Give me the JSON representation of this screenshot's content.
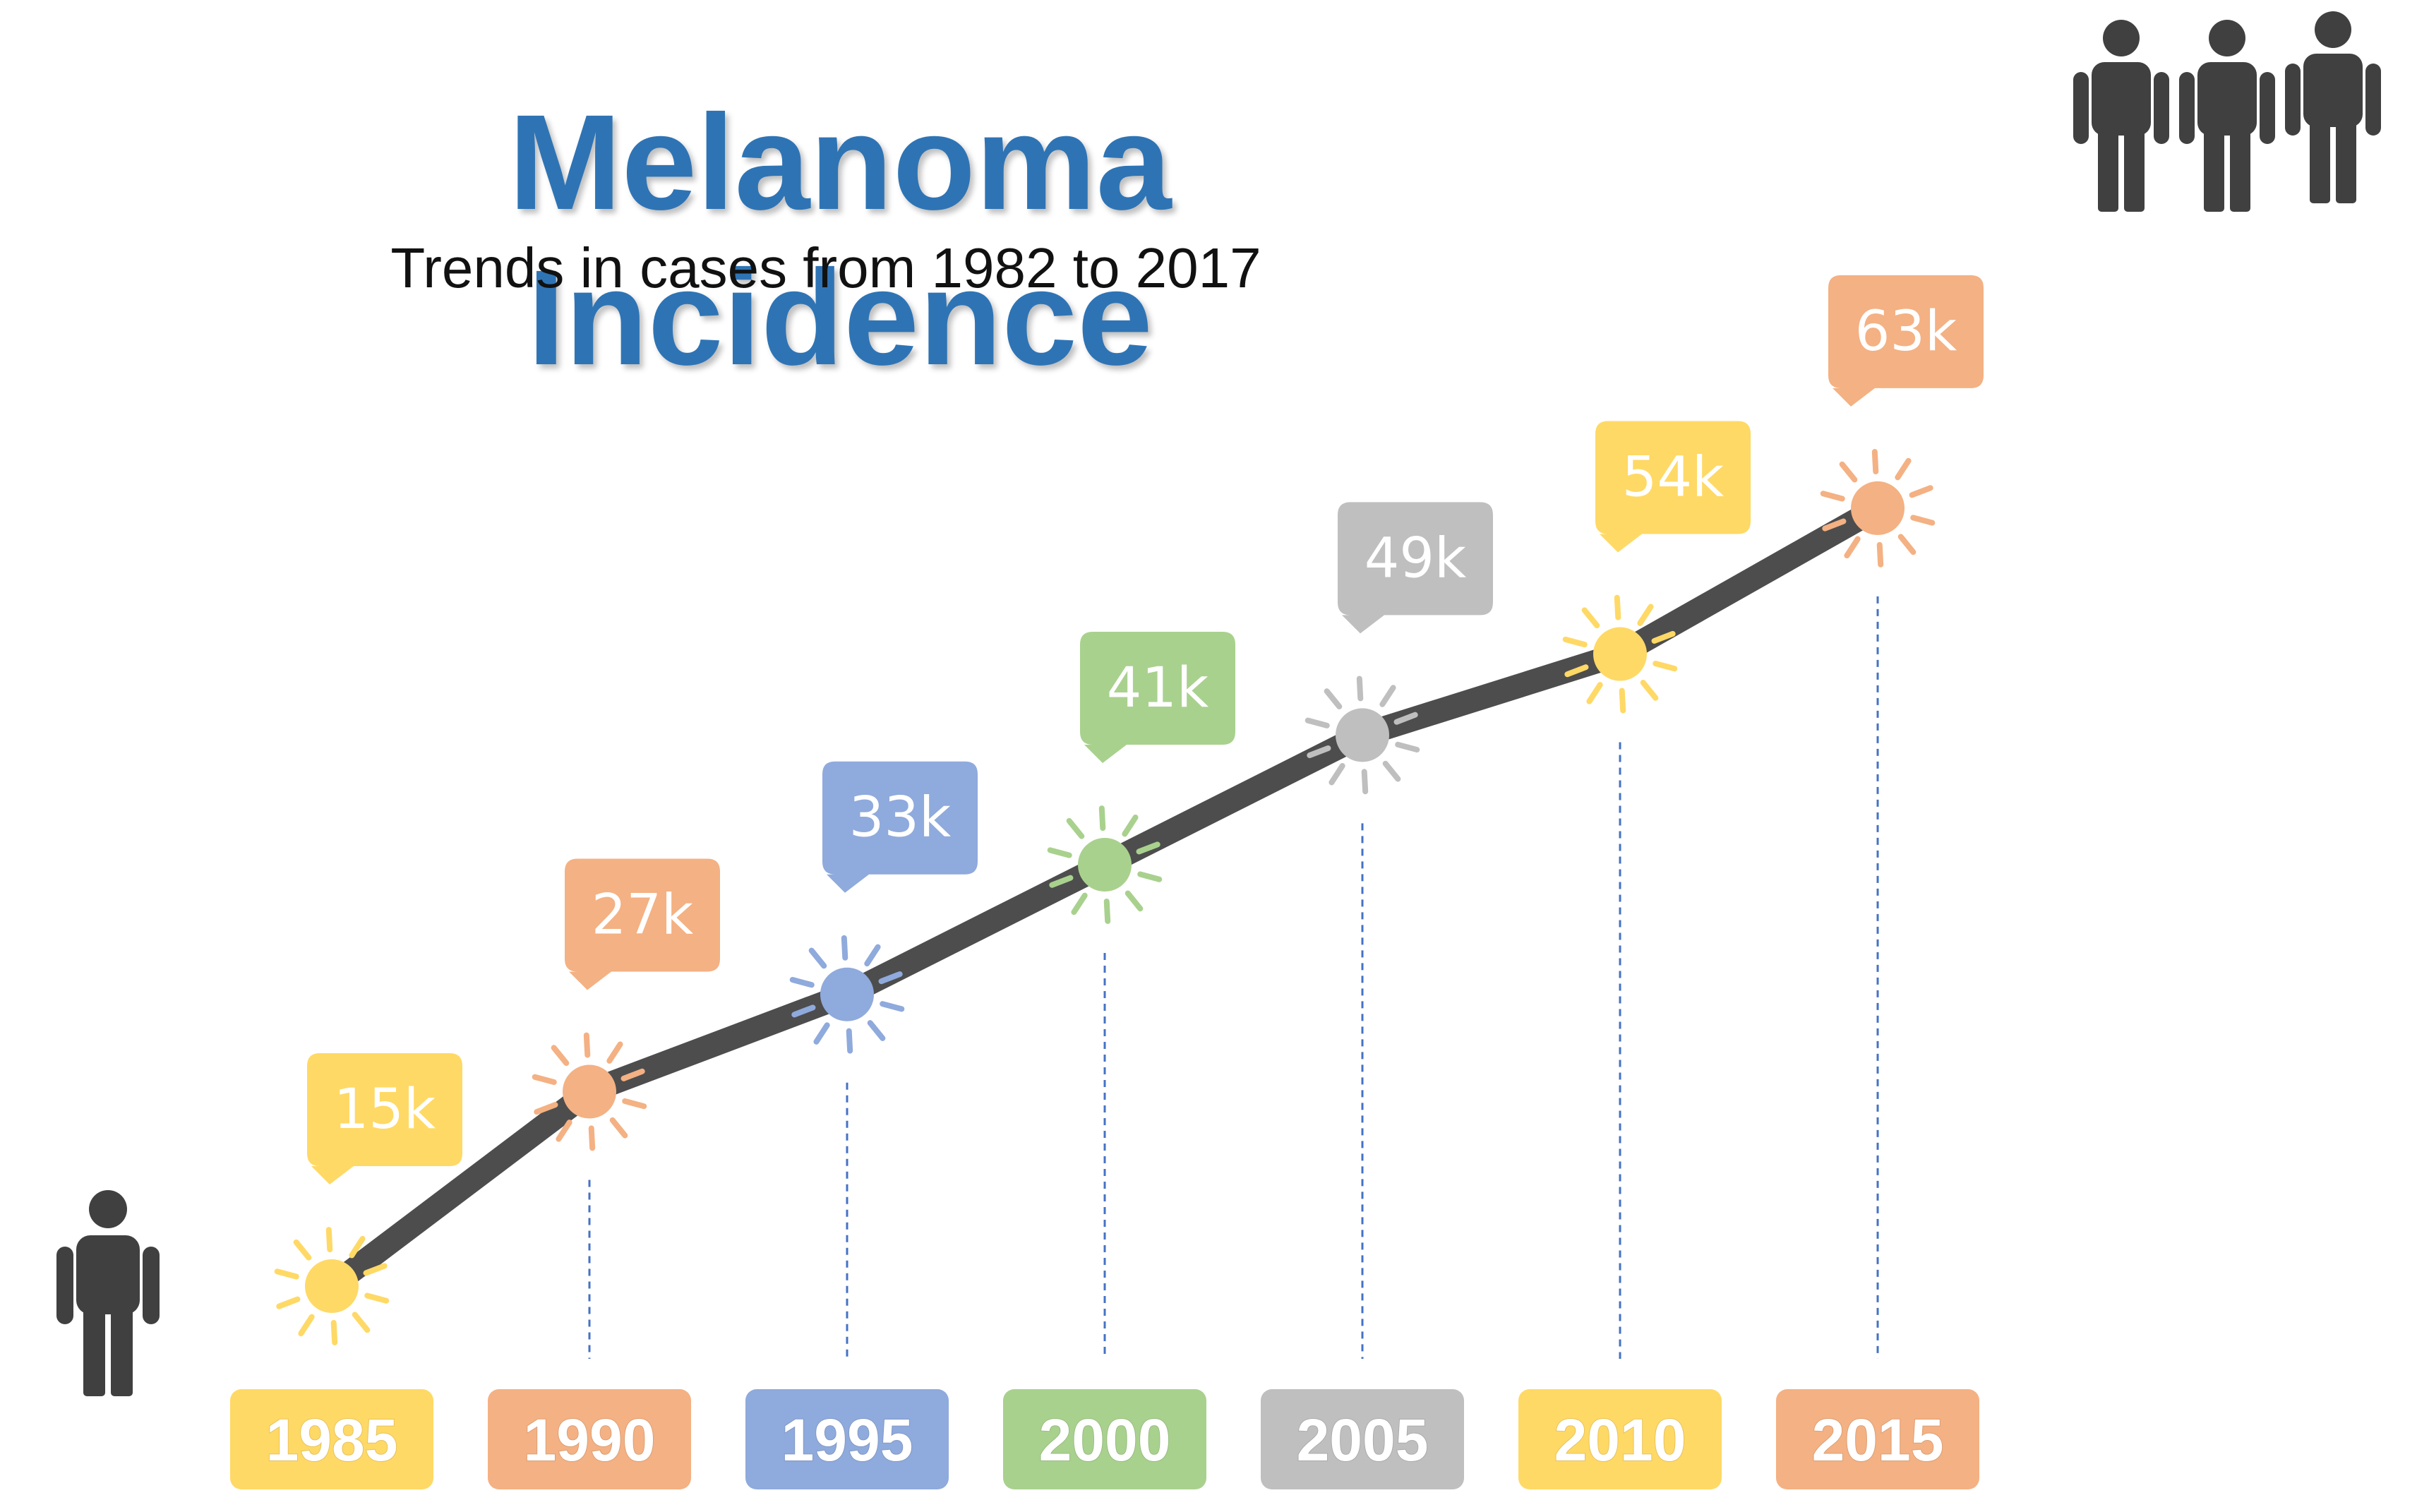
{
  "title": "Melanoma Incidence",
  "subtitle": "Trends in cases from 1982 to 2017",
  "icons": {
    "single_person": "person-icon",
    "group_of_people": "people-group-icon",
    "data_marker": "sun-icon"
  },
  "chart_data": {
    "type": "line",
    "title": "Melanoma Incidence",
    "subtitle": "Trends in cases from 1982 to 2017",
    "xlabel": "",
    "ylabel": "",
    "x": [
      "1985",
      "1990",
      "1995",
      "2000",
      "2005",
      "2010",
      "2015"
    ],
    "values": [
      15,
      27,
      33,
      41,
      49,
      54,
      63
    ],
    "value_labels": [
      "15k",
      "27k",
      "33k",
      "41k",
      "49k",
      "54k",
      "63k"
    ],
    "grid": false,
    "legend": "none",
    "line_color": "#4D4D4D",
    "point_colors": [
      "#FFD966",
      "#F4B183",
      "#8FAADC",
      "#A9D18E",
      "#BFBFBF",
      "#FFD966",
      "#F4B183"
    ]
  }
}
